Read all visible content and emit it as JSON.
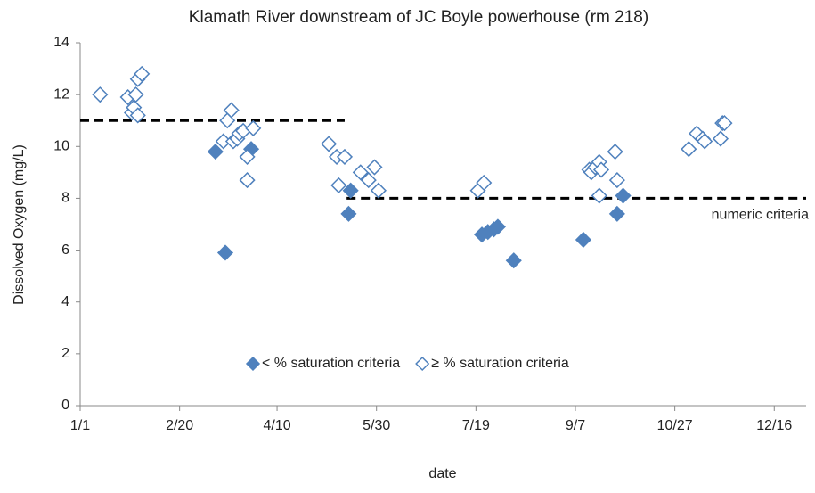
{
  "chart_data": {
    "type": "scatter",
    "title": "Klamath River downstream of JC Boyle powerhouse (rm 218)",
    "x_label": "date",
    "y_label": "Dissolved Oxygen (mg/L)",
    "xlim": [
      1,
      366
    ],
    "xticks": [
      {
        "value": 1,
        "label": "1/1"
      },
      {
        "value": 51,
        "label": "2/20"
      },
      {
        "value": 100,
        "label": "4/10"
      },
      {
        "value": 150,
        "label": "5/30"
      },
      {
        "value": 200,
        "label": "7/19"
      },
      {
        "value": 250,
        "label": "9/7"
      },
      {
        "value": 300,
        "label": "10/27"
      },
      {
        "value": 350,
        "label": "12/16"
      }
    ],
    "ylim": [
      0,
      14
    ],
    "yticks": [
      0,
      2,
      4,
      6,
      8,
      10,
      12,
      14
    ],
    "series": [
      {
        "name": "< % saturation  criteria",
        "color": "#4f81bd",
        "filled": true,
        "x": [
          69,
          74,
          87,
          137,
          136,
          203,
          206,
          209,
          211,
          219,
          254,
          271,
          274
        ],
        "values": [
          9.8,
          5.9,
          9.9,
          8.3,
          7.4,
          6.6,
          6.7,
          6.8,
          6.9,
          5.6,
          6.4,
          7.4,
          8.1
        ]
      },
      {
        "name": "≥ % saturation  criteria",
        "color": "#4f81bd",
        "filled": false,
        "x": [
          11,
          25,
          27,
          28,
          29,
          30,
          30,
          32,
          73,
          75,
          77,
          78,
          80,
          81,
          83,
          85,
          85,
          88,
          126,
          130,
          131,
          134,
          142,
          146,
          149,
          151,
          201,
          204,
          257,
          258,
          260,
          262,
          262,
          263,
          270,
          271,
          307,
          311,
          314,
          315,
          323,
          324,
          325
        ],
        "values": [
          12.0,
          11.9,
          11.3,
          11.5,
          12.0,
          11.2,
          12.6,
          12.8,
          10.2,
          11.0,
          11.4,
          10.2,
          10.3,
          10.5,
          10.6,
          9.6,
          8.7,
          10.7,
          10.1,
          9.6,
          8.5,
          9.6,
          9.0,
          8.7,
          9.2,
          8.3,
          8.3,
          8.6,
          9.1,
          9.0,
          9.2,
          9.4,
          8.1,
          9.1,
          9.8,
          8.7,
          9.9,
          10.5,
          10.3,
          10.2,
          10.3,
          10.9,
          10.9
        ]
      }
    ],
    "criteria_label": "numeric criteria",
    "criteria_lines": [
      {
        "x": [
          1,
          134
        ],
        "values": [
          11,
          11
        ]
      },
      {
        "x": [
          135,
          366
        ],
        "values": [
          8,
          8
        ]
      }
    ],
    "grid": false,
    "legend": "bottom"
  }
}
